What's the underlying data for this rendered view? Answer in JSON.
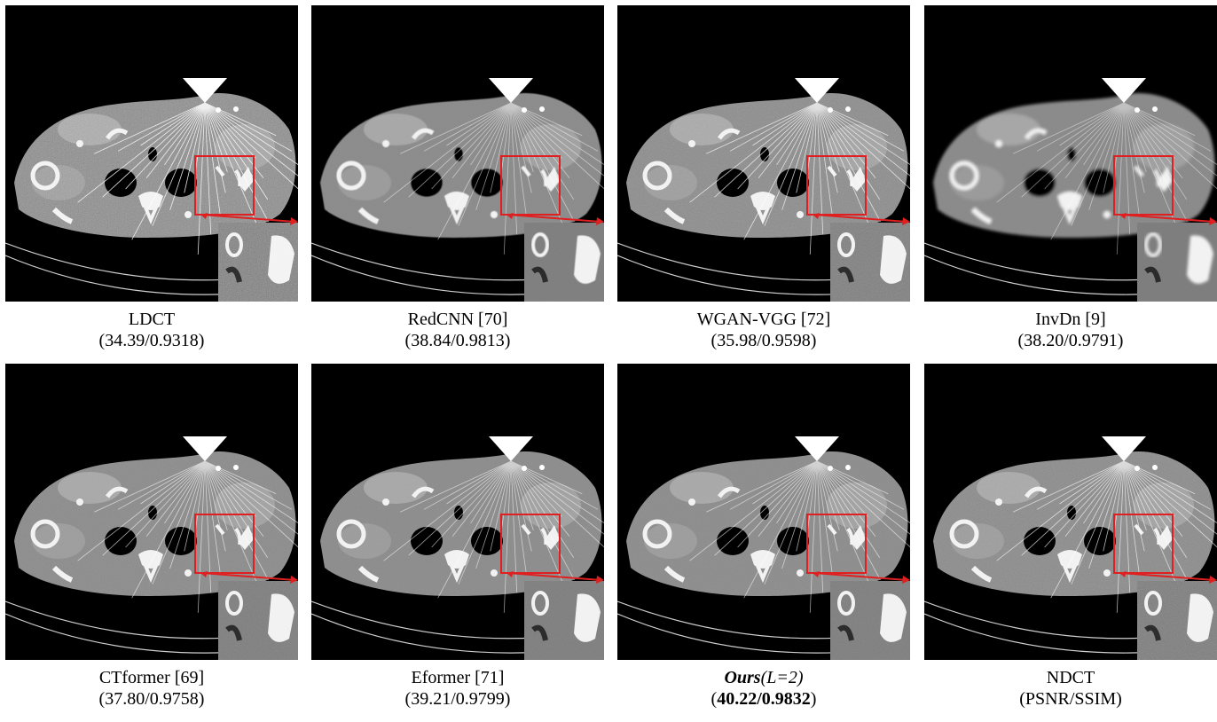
{
  "panels": [
    {
      "name": "LDCT",
      "metric": "(34.39/0.9318)",
      "noise": 0.85,
      "blur": 0
    },
    {
      "name": "RedCNN [70]",
      "metric": "(38.84/0.9813)",
      "noise": 0.15,
      "blur": 0.6
    },
    {
      "name": "WGAN-VGG [72]",
      "metric": "(35.98/0.9598)",
      "noise": 0.55,
      "blur": 0.1
    },
    {
      "name": "InvDn [9]",
      "metric": "(38.20/0.9791)",
      "noise": 0.05,
      "blur": 1.6
    },
    {
      "name": "CTformer [69]",
      "metric": "(37.80/0.9758)",
      "noise": 0.35,
      "blur": 0.3
    },
    {
      "name": "Eformer [71]",
      "metric": "(39.21/0.9799)",
      "noise": 0.25,
      "blur": 0.3
    },
    {
      "name_bold": "Ours",
      "name_rest": "(L=2)",
      "metric_open": "(",
      "metric_bold": "40.22/0.9832",
      "metric_close": ")",
      "noise": 0.3,
      "blur": 0.2
    },
    {
      "name": "NDCT",
      "metric": "(PSNR/SSIM)",
      "noise": 0.45,
      "blur": 0
    }
  ],
  "colors": {
    "highlight": "#e02020",
    "background": "#000000",
    "tissue": "#8a8a8a",
    "bone": "#f2f2f2"
  }
}
